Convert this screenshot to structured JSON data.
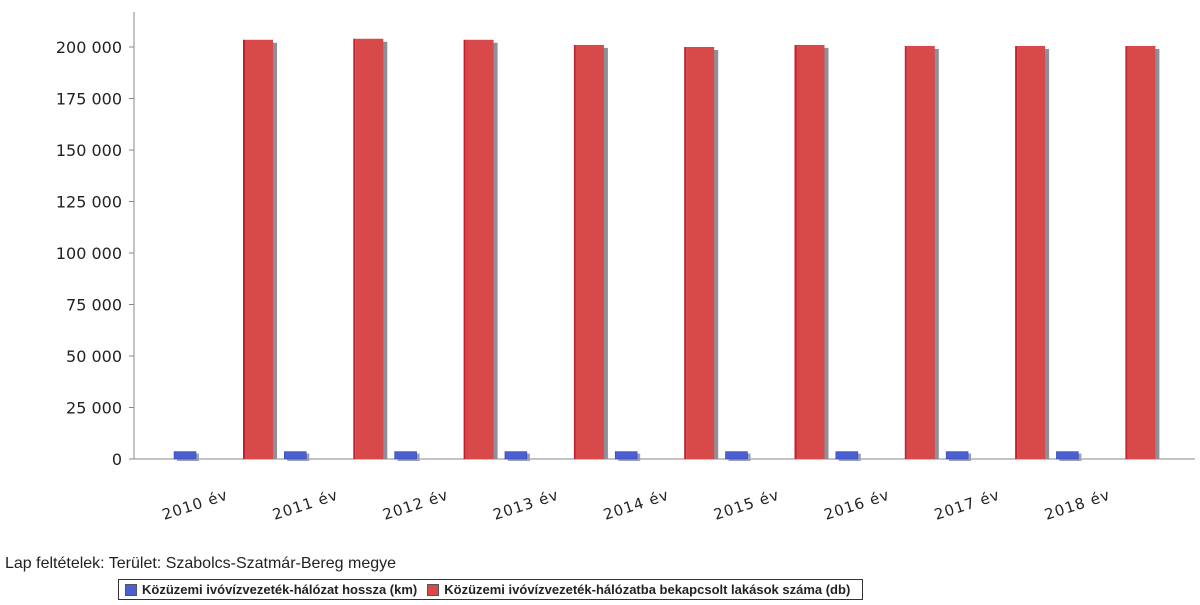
{
  "chart_data": {
    "type": "bar",
    "categories": [
      "2010 év",
      "2011 év",
      "2012 év",
      "2013 év",
      "2014 év",
      "2015 év",
      "2016 év",
      "2017 év",
      "2018 év"
    ],
    "series": [
      {
        "name": "Közüzemi ivóvízvezeték-hálózat hossza (km)",
        "color": "#4b5fd0",
        "values": [
          3600,
          3600,
          3600,
          3600,
          3600,
          3600,
          3600,
          3600,
          3600
        ]
      },
      {
        "name": "Közüzemi ivóvízvezeték-hálózatba bekapcsolt lakások száma (db)",
        "color": "#d84a4a",
        "values": [
          203500,
          204000,
          203500,
          201000,
          200000,
          201000,
          200500,
          200500,
          200500
        ]
      }
    ],
    "yticks": [
      "200 000",
      "175 000",
      "150 000",
      "125 000",
      "100 000",
      "75 000",
      "50 000",
      "25 000",
      "0"
    ],
    "ylim": [
      0,
      200000
    ],
    "grid": false,
    "legend_position": "bottom"
  },
  "conditions": "Lap feltételek: Terület: Szabolcs-Szatmár-Bereg megye"
}
